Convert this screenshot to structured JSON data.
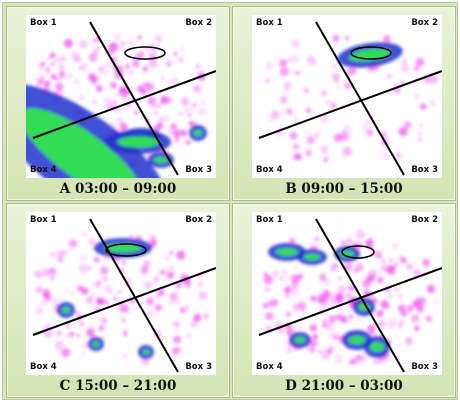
{
  "panels": [
    {
      "id": "A",
      "caption": "A 03:00 – 09:00",
      "boxes": [
        "Box 1",
        "Box 2",
        "Box 4",
        "Box 3"
      ]
    },
    {
      "id": "B",
      "caption": "B 09:00 – 15:00",
      "boxes": [
        "Box 1",
        "Box 2",
        "Box 4",
        "Box 3"
      ]
    },
    {
      "id": "C",
      "caption": "C 15:00 – 21:00",
      "boxes": [
        "Box 1",
        "Box 2",
        "Box 4",
        "Box 3"
      ]
    },
    {
      "id": "D",
      "caption": "D 21:00 – 03:00",
      "boxes": [
        "Box 1",
        "Box 2",
        "Box 4",
        "Box 3"
      ]
    }
  ],
  "colors": {
    "panel_bg": "#d7e4bd",
    "heat_low": "#ee44ee",
    "heat_mid": "#2233cc",
    "heat_high": "#33dd55",
    "divider": "#000000"
  }
}
